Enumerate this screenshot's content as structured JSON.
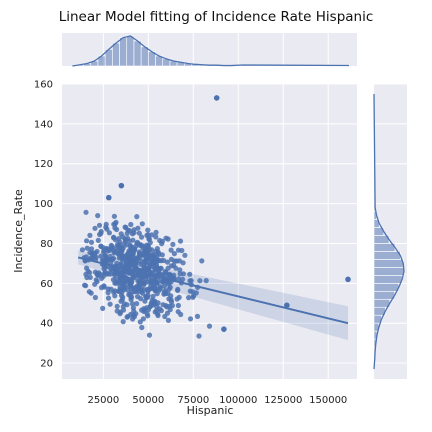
{
  "chart_data": {
    "type": "scatter",
    "title": "Linear Model fitting of Incidence Rate Hispanic",
    "xlabel": "Hispanic",
    "ylabel": "Incidence_Rate",
    "xlim": [
      2000,
      166000
    ],
    "ylim": [
      12,
      160
    ],
    "xticks": [
      25000,
      50000,
      75000,
      100000,
      125000,
      150000
    ],
    "yticks": [
      20,
      40,
      60,
      80,
      100,
      120,
      140,
      160
    ],
    "grid": true,
    "regression": {
      "x": [
        11000,
        161000
      ],
      "y": [
        73,
        40
      ],
      "ci_upper": [
        76.5,
        48.5
      ],
      "ci_lower": [
        69.5,
        31.5
      ]
    },
    "outliers": {
      "x": [
        88000,
        161000,
        127000,
        92000,
        35000,
        28000
      ],
      "y": [
        153,
        62,
        49,
        37,
        109,
        103
      ]
    },
    "top_histogram": {
      "bin_edges": [
        10000,
        14000,
        18000,
        22000,
        26000,
        30000,
        34000,
        38000,
        42000,
        46000,
        50000,
        54000,
        58000,
        62000,
        66000,
        70000,
        74000,
        78000,
        82000,
        86000,
        90000,
        94000,
        98000
      ],
      "counts": [
        3,
        6,
        12,
        24,
        40,
        55,
        68,
        72,
        60,
        46,
        34,
        24,
        17,
        12,
        9,
        6,
        4,
        3,
        2,
        2,
        1,
        1
      ]
    },
    "right_histogram": {
      "bin_edges": [
        20,
        24,
        28,
        32,
        36,
        40,
        44,
        48,
        52,
        56,
        60,
        64,
        68,
        72,
        76,
        80,
        84,
        88,
        92,
        96,
        100
      ],
      "counts": [
        2,
        3,
        5,
        8,
        13,
        20,
        30,
        42,
        55,
        66,
        75,
        80,
        78,
        70,
        56,
        40,
        26,
        14,
        7,
        3
      ]
    },
    "colors": {
      "point": "#4c72b0",
      "background": "#eaeaf2",
      "grid": "#ffffff"
    }
  }
}
